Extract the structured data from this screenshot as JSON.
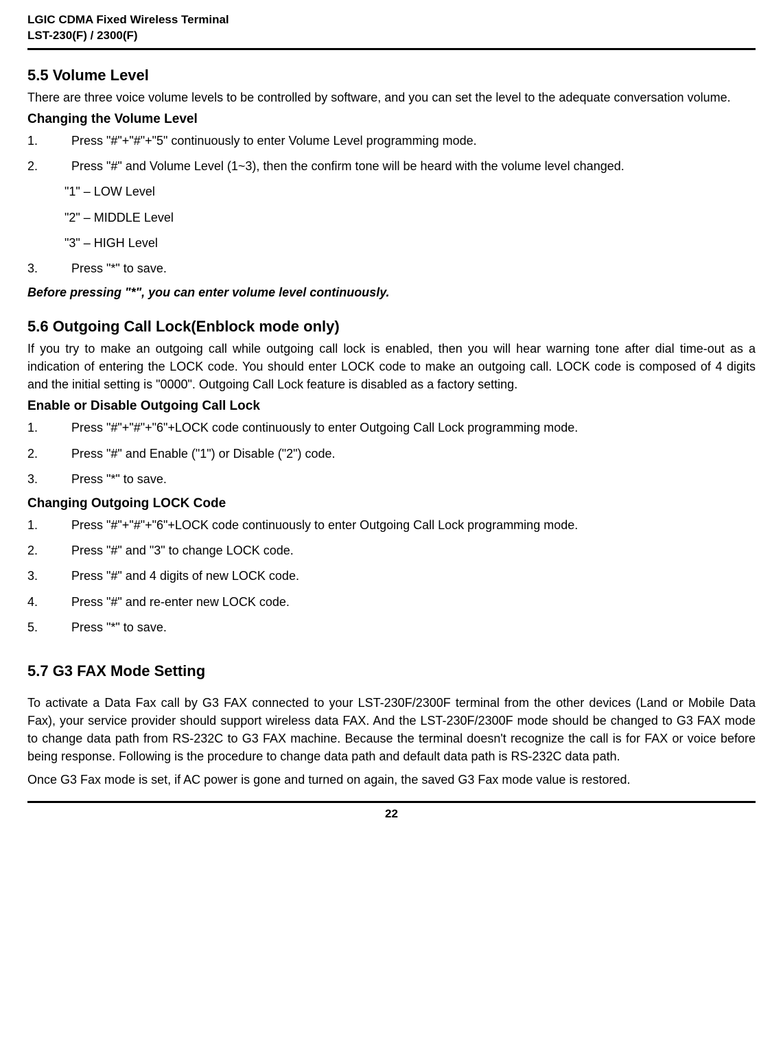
{
  "header": {
    "line1": "LGIC CDMA Fixed Wireless Terminal",
    "line2": "LST-230(F) / 2300(F)"
  },
  "section55": {
    "heading": "5.5  Volume Level",
    "intro": "There are three voice volume levels to be controlled by software, and you can set the level to the adequate conversation volume.",
    "subheading": "Changing the Volume Level",
    "steps": [
      {
        "n": "1.",
        "t": "Press \"#\"+\"#\"+\"5\" continuously to enter Volume Level programming mode."
      },
      {
        "n": "2.",
        "t": "Press \"#\" and Volume Level (1~3), then the confirm tone will be heard with the volume level changed."
      }
    ],
    "levels": [
      "\"1\" – LOW Level",
      "\"2\" – MIDDLE Level",
      "\"3\" – HIGH Level"
    ],
    "step3": {
      "n": "3.",
      "t": "Press \"*\" to save."
    },
    "note": "Before pressing \"*\", you can enter volume level continuously."
  },
  "section56": {
    "heading": "5.6  Outgoing Call Lock(Enblock mode only)",
    "intro": "If you try to make an outgoing call while outgoing call lock is enabled, then you will hear warning tone after dial time-out as a indication of entering the LOCK code. You should enter LOCK code to make an outgoing call. LOCK code is composed of 4 digits and the initial setting is \"0000\". Outgoing Call Lock feature is disabled as a factory setting.",
    "sub1": "Enable or Disable Outgoing Call Lock",
    "steps1": [
      {
        "n": "1.",
        "t": "Press \"#\"+\"#\"+\"6\"+LOCK code continuously to enter Outgoing Call Lock programming  mode."
      },
      {
        "n": "2.",
        "t": "Press \"#\" and Enable (\"1\") or Disable (\"2\") code."
      },
      {
        "n": "3.",
        "t": "Press \"*\" to save."
      }
    ],
    "sub2": "Changing Outgoing LOCK Code",
    "steps2": [
      {
        "n": "1.",
        "t": "Press \"#\"+\"#\"+\"6\"+LOCK code continuously to enter Outgoing Call Lock programming mode."
      },
      {
        "n": "2.",
        "t": "Press \"#\" and \"3\" to change LOCK code."
      },
      {
        "n": "3.",
        "t": "Press \"#\" and 4 digits of new LOCK code."
      },
      {
        "n": "4.",
        "t": "Press \"#\" and re-enter new LOCK code."
      },
      {
        "n": "5.",
        "t": "Press \"*\" to save."
      }
    ]
  },
  "section57": {
    "heading": "5.7    G3 FAX Mode Setting",
    "para1": "To activate a Data Fax call by G3 FAX connected to your LST-230F/2300F terminal from the other devices (Land or Mobile Data Fax), your service provider should support wireless data FAX. And the LST-230F/2300F mode should be changed to G3 FAX mode to change data path from RS-232C to G3 FAX machine. Because the terminal doesn't recognize the call is for FAX or voice before being response. Following is the procedure to change data path and default data path is RS-232C data path.",
    "para2": "Once G3 Fax mode is set, if AC power is gone and turned on again, the saved G3 Fax mode value is restored."
  },
  "pageNumber": "22"
}
